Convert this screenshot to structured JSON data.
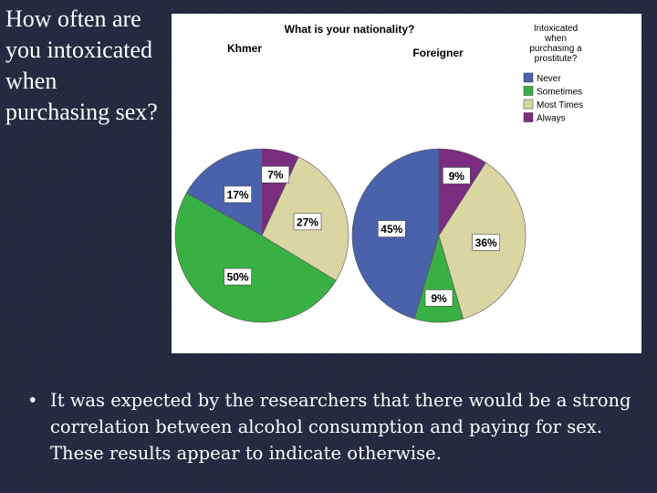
{
  "slide": {
    "title": "How often are you intoxicated when purchasing sex?",
    "bullet": "It was expected by the researchers that there would be a strong correlation between alcohol consumption and paying for sex.  These results appear to indicate otherwise."
  },
  "chart_data": {
    "type": "pie",
    "title": "What is your nationality?",
    "legend": {
      "title_lines": [
        "Intoxicated",
        "when",
        "purchasing a",
        "prostitute?"
      ],
      "placement": "top-right",
      "entries": [
        "Never",
        "Sometimes",
        "Most Times",
        "Always"
      ]
    },
    "colors": [
      "#4a61ac",
      "#39b043",
      "#d9d6a2",
      "#7a2d80"
    ],
    "series": [
      {
        "name": "Khmer",
        "values": [
          17,
          50,
          27,
          7
        ],
        "labels": [
          "17%",
          "50%",
          "27%",
          "7%"
        ]
      },
      {
        "name": "Foreigner",
        "values": [
          45,
          9,
          36,
          9
        ],
        "labels": [
          "45%",
          "9%",
          "36%",
          "9%"
        ]
      }
    ]
  }
}
